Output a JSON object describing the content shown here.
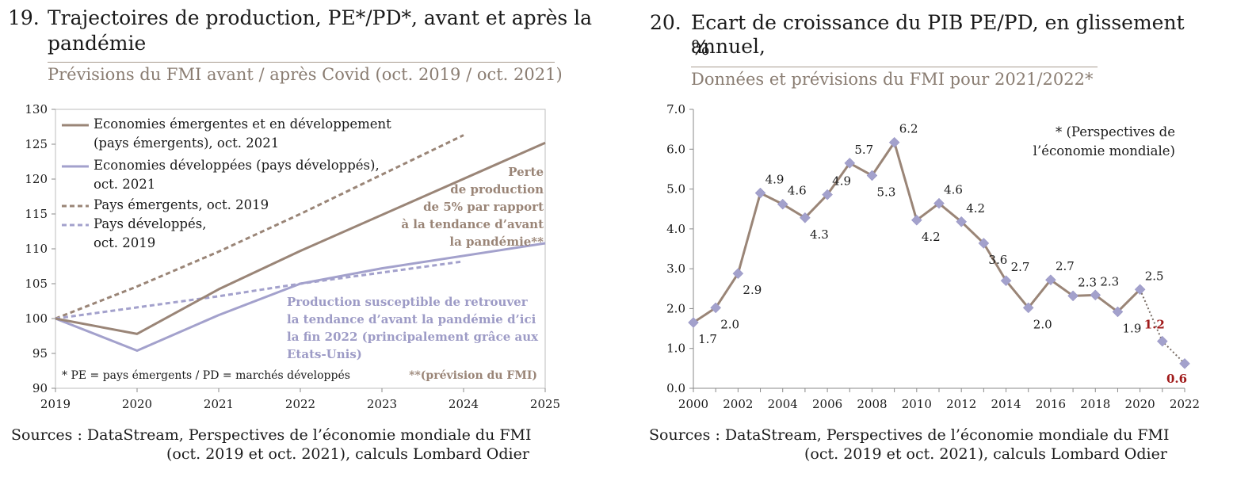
{
  "chart_data": [
    {
      "id": "chart19",
      "type": "line",
      "number": "19.",
      "title_line1": "Trajectoires de production, PE*/PD*, avant et après la",
      "title_line2": "pandémie",
      "subtitle": "Prévisions du FMI avant / après Covid (oct. 2019 / oct. 2021)",
      "x": [
        2019,
        2020,
        2021,
        2022,
        2023,
        2024,
        2025
      ],
      "x_tick_labels": [
        "2019",
        "2020",
        "2021",
        "2022",
        "2023",
        "2024",
        "2025"
      ],
      "ylim": [
        90,
        130
      ],
      "y_ticks": [
        90,
        95,
        100,
        105,
        110,
        115,
        120,
        125,
        130
      ],
      "series": [
        {
          "name_line1": "Economies émergentes et en développement",
          "name_line2": "(pays émergents), oct. 2021",
          "color": "#9a8577",
          "dash": false,
          "points": [
            [
              2019,
              100
            ],
            [
              2020,
              97.8
            ],
            [
              2021,
              104.2
            ],
            [
              2022,
              109.7
            ],
            [
              2025,
              125.2
            ]
          ]
        },
        {
          "name_line1": "Economies développées (pays développés),",
          "name_line2": "oct. 2021",
          "color": "#a3a1cc",
          "dash": false,
          "points": [
            [
              2019,
              100
            ],
            [
              2020,
              95.4
            ],
            [
              2021,
              100.5
            ],
            [
              2022,
              105.0
            ],
            [
              2023,
              107.2
            ],
            [
              2025,
              110.8
            ]
          ]
        },
        {
          "name_line1": "Pays émergents, oct. 2019",
          "name_line2": "",
          "color": "#9a8577",
          "dash": true,
          "points": [
            [
              2019,
              100
            ],
            [
              2020,
              104.6
            ],
            [
              2021,
              109.6
            ],
            [
              2022,
              115.0
            ],
            [
              2024,
              126.3
            ]
          ]
        },
        {
          "name_line1": "Pays développés,",
          "name_line2": "oct. 2019",
          "color": "#a3a1cc",
          "dash": true,
          "points": [
            [
              2019,
              100
            ],
            [
              2020,
              101.6
            ],
            [
              2021,
              103.2
            ],
            [
              2022,
              105.0
            ],
            [
              2024,
              108.2
            ]
          ]
        }
      ],
      "annotation_loss": [
        "Perte",
        "de production",
        "de 5% par rapport",
        "à la tendance d’avant",
        "la pandémie**"
      ],
      "annotation_recover": [
        "Production susceptible de retrouver",
        "la tendance d’avant la pandémie d’ici",
        "la fin 2022 (principalement grâce aux",
        "Etats-Unis)"
      ],
      "footnote_left": "* PE = pays émergents / PD = marchés développés",
      "footnote_right": "**(prévision du FMI)",
      "grid": false,
      "source_line1": "Sources : DataStream, Perspectives de l’économie mondiale du FMI",
      "source_line2": "(oct. 2019 et oct. 2021), calculs Lombard Odier"
    },
    {
      "id": "chart20",
      "type": "line",
      "number": "20.",
      "title_line1": "Ecart de croissance du PIB PE/PD, en glissement annuel,",
      "title_line2": "%",
      "subtitle": "Données et prévisions du FMI pour 2021/2022*",
      "x": [
        2000,
        2001,
        2002,
        2003,
        2004,
        2005,
        2006,
        2007,
        2008,
        2009,
        2010,
        2011,
        2012,
        2013,
        2014,
        2015,
        2016,
        2017,
        2018,
        2019,
        2020,
        2021,
        2022
      ],
      "values": [
        1.65,
        2.02,
        2.88,
        4.9,
        4.62,
        4.28,
        4.86,
        5.65,
        5.34,
        6.17,
        4.22,
        4.64,
        4.18,
        3.64,
        2.7,
        2.02,
        2.72,
        2.32,
        2.34,
        1.92,
        2.48,
        1.18,
        0.62
      ],
      "labels": [
        "1.7",
        "2.0",
        "2.9",
        "4.9",
        "4.6",
        "4.3",
        "4.9",
        "5.7",
        "5.3",
        "6.2",
        "4.2",
        "4.6",
        "4.2",
        "3.6",
        "2.7",
        "2.0",
        "2.7",
        "2.3",
        "2.3",
        "1.9",
        "2.5",
        "1.2",
        "0.6"
      ],
      "label_side": [
        "below",
        "below",
        "below",
        "above",
        "above",
        "below",
        "above",
        "above",
        "below",
        "above",
        "below",
        "above",
        "above",
        "below",
        "above",
        "below",
        "above",
        "above",
        "above",
        "below",
        "above",
        "above",
        "below"
      ],
      "forecast_from_index": 20,
      "x_tick_labels": [
        "2000",
        "2002",
        "2004",
        "2006",
        "2008",
        "2010",
        "2012",
        "2014",
        "2016",
        "2018",
        "2020",
        "2022"
      ],
      "ylim": [
        0,
        7
      ],
      "y_ticks": [
        "0.0",
        "1.0",
        "2.0",
        "3.0",
        "4.0",
        "5.0",
        "6.0",
        "7.0"
      ],
      "line_color": "#9a8577",
      "marker_color": "#a3a1cc",
      "forecast_label_color": "#a01a1a",
      "note_line1": "* (Perspectives de",
      "note_line2": "l’économie mondiale)",
      "grid": false,
      "source_line1": "Sources : DataStream, Perspectives de l’économie mondiale du FMI",
      "source_line2": "(oct. 2019 et oct. 2021), calculs Lombard Odier"
    }
  ]
}
